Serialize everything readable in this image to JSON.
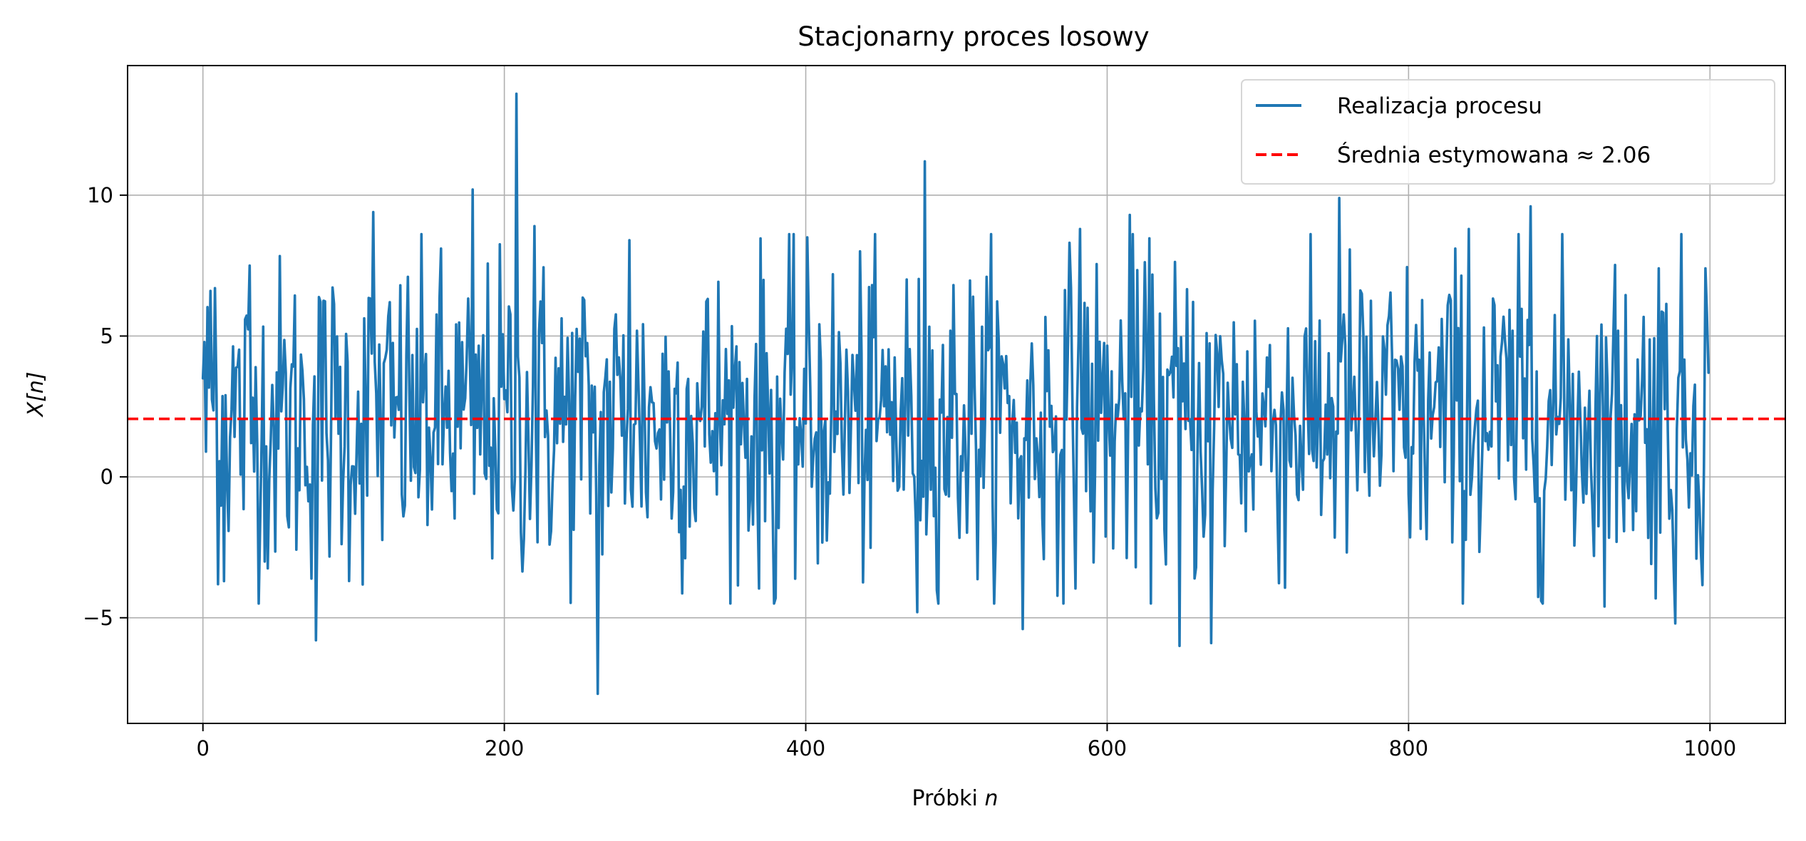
{
  "chart_data": {
    "type": "line",
    "title": "Stacjonarny proces losowy",
    "xlabel": "Próbki n",
    "xlabel_main": "Próbki ",
    "xlabel_var": "n",
    "ylabel": "X[n]",
    "xlim": [
      -50,
      1050
    ],
    "ylim": [
      -8.75,
      14.6
    ],
    "xticks": [
      0,
      200,
      400,
      600,
      800,
      1000
    ],
    "xtick_labels": [
      "0",
      "200",
      "400",
      "600",
      "800",
      "1000"
    ],
    "yticks": [
      -5,
      0,
      5,
      10
    ],
    "ytick_labels": [
      "−5",
      "0",
      "5",
      "10"
    ],
    "grid": true,
    "legend_position": "top-right",
    "series": [
      {
        "name": "Realizacja procesu",
        "color": "#1f77b4",
        "style": "solid",
        "n": 1000,
        "x_start": 0,
        "x_end": 999,
        "mean": 2.06,
        "std": 3.0,
        "notable_points": [
          {
            "x": 0,
            "y": 3.5
          },
          {
            "x": 5,
            "y": 6.6
          },
          {
            "x": 8,
            "y": 6.7
          },
          {
            "x": 14,
            "y": -3.7
          },
          {
            "x": 31,
            "y": 7.5
          },
          {
            "x": 75,
            "y": -5.8
          },
          {
            "x": 113,
            "y": 9.4
          },
          {
            "x": 179,
            "y": 10.2
          },
          {
            "x": 208,
            "y": 13.6
          },
          {
            "x": 220,
            "y": 8.9
          },
          {
            "x": 262,
            "y": -7.7
          },
          {
            "x": 283,
            "y": 8.4
          },
          {
            "x": 380,
            "y": -4.3
          },
          {
            "x": 474,
            "y": -4.8
          },
          {
            "x": 479,
            "y": 11.2
          },
          {
            "x": 544,
            "y": -5.4
          },
          {
            "x": 582,
            "y": 8.8
          },
          {
            "x": 615,
            "y": 9.3
          },
          {
            "x": 648,
            "y": -6.0
          },
          {
            "x": 669,
            "y": -5.9
          },
          {
            "x": 754,
            "y": 9.9
          },
          {
            "x": 840,
            "y": 8.8
          },
          {
            "x": 881,
            "y": 9.6
          },
          {
            "x": 930,
            "y": -4.6
          },
          {
            "x": 966,
            "y": 7.4
          },
          {
            "x": 977,
            "y": -5.2
          },
          {
            "x": 997,
            "y": 7.4
          },
          {
            "x": 999,
            "y": 3.7
          }
        ]
      },
      {
        "name": "Średnia estymowana ≈ 2.06",
        "color": "#ff0000",
        "style": "dashed",
        "y": 2.06
      }
    ]
  }
}
